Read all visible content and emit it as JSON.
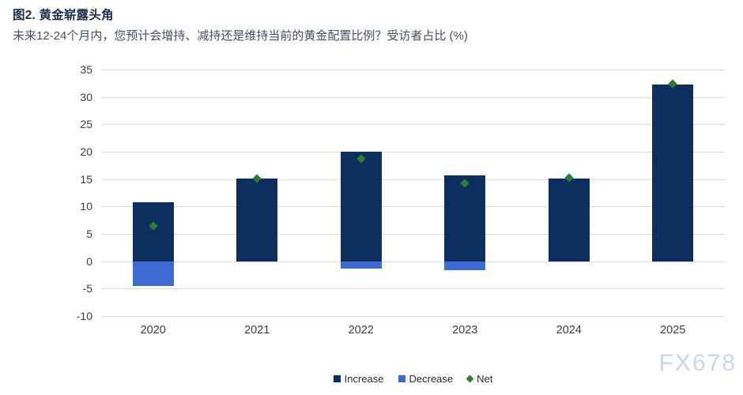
{
  "header": {
    "figure_title": "图2. 黄金崭露头角",
    "subtitle": "未来12-24个月内，您预计会增持、减持还是维持当前的黄金配置比例？受访者占比 (%)"
  },
  "watermark": "FX678",
  "chart_data": {
    "type": "bar",
    "title": "图2. 黄金崭露头角",
    "subtitle": "未来12-24个月内，您预计会增持、减持还是维持当前的黄金配置比例？受访者占比 (%)",
    "categories": [
      "2020",
      "2021",
      "2022",
      "2023",
      "2024",
      "2025"
    ],
    "series": [
      {
        "name": "Increase",
        "type": "bar",
        "marker": "square",
        "color": "#0c2f5e",
        "values": [
          10.8,
          15.1,
          20.0,
          15.7,
          15.1,
          32.2
        ]
      },
      {
        "name": "Decrease",
        "type": "bar",
        "marker": "square",
        "color": "#3c6cd2",
        "values": [
          -4.5,
          0,
          -1.4,
          -1.6,
          0,
          0
        ]
      },
      {
        "name": "Net",
        "type": "scatter",
        "marker": "diamond",
        "color": "#2e7d32",
        "values": [
          6.4,
          15.1,
          18.7,
          14.2,
          15.2,
          32.4
        ]
      }
    ],
    "xlabel": "",
    "ylabel": "",
    "ylim": [
      -10,
      35
    ],
    "ytick_step": 5,
    "grid": true,
    "legend_position": "bottom-center",
    "colors": {
      "grid": "#d9d9d9",
      "axis_text": "#3c3c3c",
      "background": "#ffffff"
    }
  }
}
